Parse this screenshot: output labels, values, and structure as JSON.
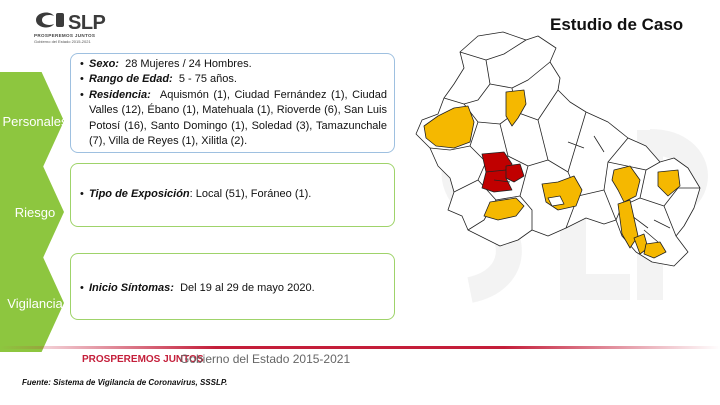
{
  "logo": {
    "name": "SLP",
    "motto": "PROSPEREMOS JUNTOS",
    "gov": "Gobierno del Estado 2015-2021"
  },
  "title": "Estudio de Caso",
  "sections": [
    {
      "label": "Personales"
    },
    {
      "label": "Riesgo"
    },
    {
      "label": "Vigilancia"
    }
  ],
  "personales": {
    "sexo_label": "Sexo:",
    "sexo_value": "28 Mujeres / 24 Hombres.",
    "edad_label": "Rango de Edad:",
    "edad_value": "5 - 75 años.",
    "residencia_label": "Residencia:",
    "residencia_value": "Aquismón (1), Ciudad Fernández (1), Ciudad Valles (12), Ébano (1), Matehuala (1), Rioverde (6), San Luis Potosí (16), Santo Domingo (1), Soledad (3), Tamazunchale (7), Villa de Reyes (1), Xilitla (2)."
  },
  "riesgo": {
    "exposicion_label": "Tipo de Exposición",
    "exposicion_value": ": Local (51), Foráneo (1)."
  },
  "vigilancia": {
    "sintomas_label": "Inicio Síntomas:",
    "sintomas_value": "Del 19 al 29 de mayo 2020."
  },
  "map": {
    "colors": {
      "affected": "#f5b800",
      "high": "#c00000",
      "base": "#ffffff",
      "border": "#222222"
    }
  },
  "footer": {
    "brand": "PROSPEREMOS JUNTOS",
    "gov": "Gobierno del Estado 2015-2021",
    "source": "Fuente: Sistema de Vigilancia de Coronavirus, SSSLP."
  },
  "colors": {
    "accent_green": "#8dc63f",
    "accent_red": "#c41e3a"
  }
}
